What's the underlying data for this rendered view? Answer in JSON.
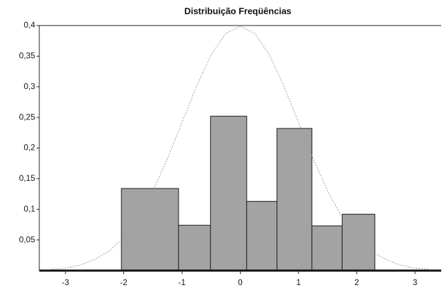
{
  "chart_data": {
    "type": "histogram",
    "title": "Distribuição Freqüências",
    "bins": [
      -2.04,
      -1.06,
      -0.51,
      0.11,
      0.63,
      1.23,
      1.75,
      2.31
    ],
    "counts": [
      0.134,
      0.074,
      0.252,
      0.113,
      0.232,
      0.073,
      0.092
    ],
    "color": "#a3a3a3",
    "curve": {
      "color": "#9a9a9a",
      "x": [
        -3.25,
        -3,
        -2.75,
        -2.5,
        -2.25,
        -2,
        -1.75,
        -1.5,
        -1.25,
        -1,
        -0.75,
        -0.5,
        -0.25,
        0,
        0.25,
        0.5,
        0.75,
        1,
        1.25,
        1.5,
        1.75,
        2,
        2.25,
        2.5,
        2.75,
        3,
        3.25
      ],
      "values": [
        0.002,
        0.004,
        0.009,
        0.018,
        0.032,
        0.054,
        0.086,
        0.13,
        0.183,
        0.242,
        0.301,
        0.352,
        0.387,
        0.399,
        0.387,
        0.352,
        0.301,
        0.242,
        0.183,
        0.13,
        0.086,
        0.054,
        0.032,
        0.018,
        0.009,
        0.004,
        0.002
      ]
    },
    "xlim": [
      -3.45,
      3.45
    ],
    "ylim": [
      0,
      0.4
    ],
    "xticks": [
      -3,
      -2,
      -1,
      0,
      1,
      2,
      3
    ],
    "yticks": [
      {
        "value": 0.05,
        "label": "0,05"
      },
      {
        "value": 0.1,
        "label": "0,1"
      },
      {
        "value": 0.15,
        "label": "0,15"
      },
      {
        "value": 0.2,
        "label": "0,2"
      },
      {
        "value": 0.25,
        "label": "0,25"
      },
      {
        "value": 0.3,
        "label": "0,3"
      },
      {
        "value": 0.35,
        "label": "0,35"
      },
      {
        "value": 0.4,
        "label": "0,4"
      }
    ]
  }
}
